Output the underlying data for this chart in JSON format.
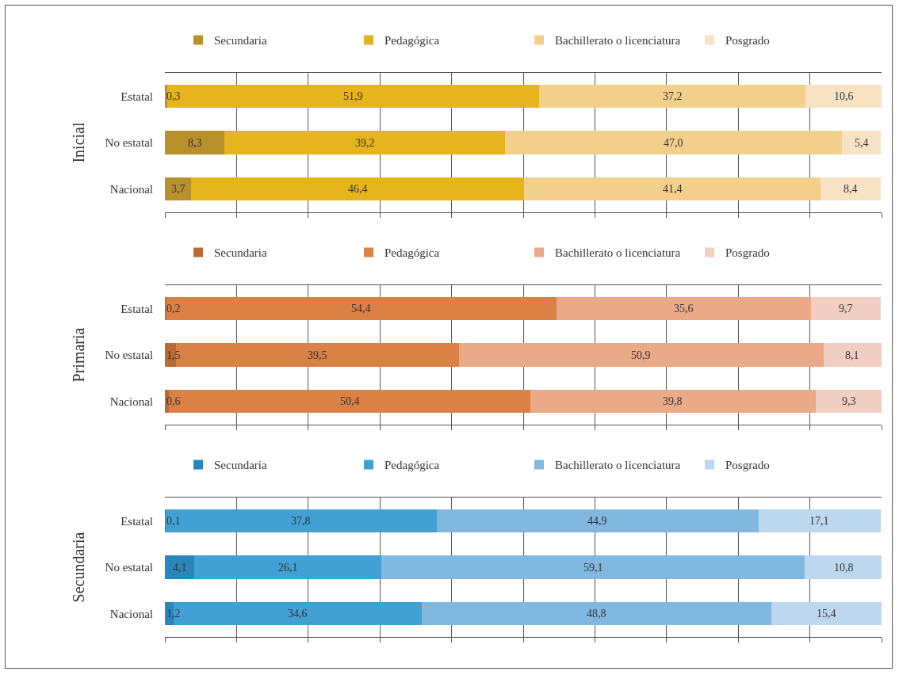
{
  "chart_data": [
    {
      "type": "bar",
      "orientation": "horizontal",
      "stacked": true,
      "ylabel": "Inicial",
      "categories": [
        "Estatal",
        "No estatal",
        "Nacional"
      ],
      "xlim": [
        0,
        100
      ],
      "xticks": [
        {
          "value": 0,
          "label": null
        },
        {
          "value": 10,
          "label": null
        },
        {
          "value": 20,
          "label": null
        },
        {
          "value": 30,
          "label": null
        },
        {
          "value": 40,
          "label": null
        },
        {
          "value": 50,
          "label": null
        },
        {
          "value": 60,
          "label": null
        },
        {
          "value": 70,
          "label": null
        },
        {
          "value": 80,
          "label": null
        },
        {
          "value": 90,
          "label": null
        },
        {
          "value": 100,
          "label": null
        }
      ],
      "tick_labels": "y",
      "grid": "x",
      "legend": "top",
      "series": [
        {
          "name": "Secundaria",
          "color": "#b8912c",
          "values": [
            0.3,
            8.3,
            3.7
          ],
          "value_labels": [
            "0,3",
            "8,3",
            "3,7"
          ]
        },
        {
          "name": "Pedagógica",
          "color": "#e6b41c",
          "values": [
            51.9,
            39.2,
            46.4
          ],
          "value_labels": [
            "51,9",
            "39,2",
            "46,4"
          ]
        },
        {
          "name": "Bachillerato o licenciatura",
          "color": "#f3cf8c",
          "values": [
            37.2,
            47.0,
            41.4
          ],
          "value_labels": [
            "37,2",
            "47,0",
            "41,4"
          ]
        },
        {
          "name": "Posgrado",
          "color": "#f7e2c4",
          "values": [
            10.6,
            5.4,
            8.4
          ],
          "value_labels": [
            "10,6",
            "5,4",
            "8,4"
          ]
        }
      ]
    },
    {
      "type": "bar",
      "orientation": "horizontal",
      "stacked": true,
      "ylabel": "Primaria",
      "categories": [
        "Estatal",
        "No estatal",
        "Nacional"
      ],
      "xlim": [
        0,
        100
      ],
      "xticks": [
        {
          "value": 0,
          "label": null
        },
        {
          "value": 10,
          "label": null
        },
        {
          "value": 20,
          "label": null
        },
        {
          "value": 30,
          "label": null
        },
        {
          "value": 40,
          "label": null
        },
        {
          "value": 50,
          "label": null
        },
        {
          "value": 60,
          "label": null
        },
        {
          "value": 70,
          "label": null
        },
        {
          "value": 80,
          "label": null
        },
        {
          "value": 90,
          "label": null
        },
        {
          "value": 100,
          "label": null
        }
      ],
      "tick_labels": "y",
      "grid": "x",
      "legend": "top",
      "series": [
        {
          "name": "Secundaria",
          "color": "#b96b36",
          "values": [
            0.2,
            1.5,
            0.6
          ],
          "value_labels": [
            "0,2",
            "1,5",
            "0,6"
          ]
        },
        {
          "name": "Pedagógica",
          "color": "#da8146",
          "values": [
            54.4,
            39.5,
            50.4
          ],
          "value_labels": [
            "54,4",
            "39,5",
            "50,4"
          ]
        },
        {
          "name": "Bachillerato o licenciatura",
          "color": "#eaa987",
          "values": [
            35.6,
            50.9,
            39.8
          ],
          "value_labels": [
            "35,6",
            "50,9",
            "39,8"
          ]
        },
        {
          "name": "Posgrado",
          "color": "#f1cec2",
          "values": [
            9.7,
            8.1,
            9.3
          ],
          "value_labels": [
            "9,7",
            "8,1",
            "9,3"
          ]
        }
      ]
    },
    {
      "type": "bar",
      "orientation": "horizontal",
      "stacked": true,
      "ylabel": "Secundaria",
      "categories": [
        "Estatal",
        "No estatal",
        "Nacional"
      ],
      "xlim": [
        0,
        100
      ],
      "xticks": [
        {
          "value": 0,
          "label": null
        },
        {
          "value": 10,
          "label": null
        },
        {
          "value": 20,
          "label": null
        },
        {
          "value": 30,
          "label": null
        },
        {
          "value": 40,
          "label": null
        },
        {
          "value": 50,
          "label": null
        },
        {
          "value": 60,
          "label": null
        },
        {
          "value": 70,
          "label": null
        },
        {
          "value": 80,
          "label": null
        },
        {
          "value": 90,
          "label": null
        },
        {
          "value": 100,
          "label": null
        }
      ],
      "tick_labels": "y",
      "grid": "x",
      "legend": "top",
      "series": [
        {
          "name": "Secundaria",
          "color": "#2b86bc",
          "values": [
            0.1,
            4.1,
            1.2
          ],
          "value_labels": [
            "0,1",
            "4,1",
            "1,2"
          ]
        },
        {
          "name": "Pedagógica",
          "color": "#41a0d4",
          "values": [
            37.8,
            26.1,
            34.6
          ],
          "value_labels": [
            "37,8",
            "26,1",
            "34,6"
          ]
        },
        {
          "name": "Bachillerato o licenciatura",
          "color": "#80b8e0",
          "values": [
            44.9,
            59.1,
            48.8
          ],
          "value_labels": [
            "44,9",
            "59,1",
            "48,8"
          ]
        },
        {
          "name": "Posgrado",
          "color": "#bdd7ee",
          "values": [
            17.1,
            10.8,
            15.4
          ],
          "value_labels": [
            "17,1",
            "10,8",
            "15,4"
          ]
        }
      ]
    }
  ]
}
